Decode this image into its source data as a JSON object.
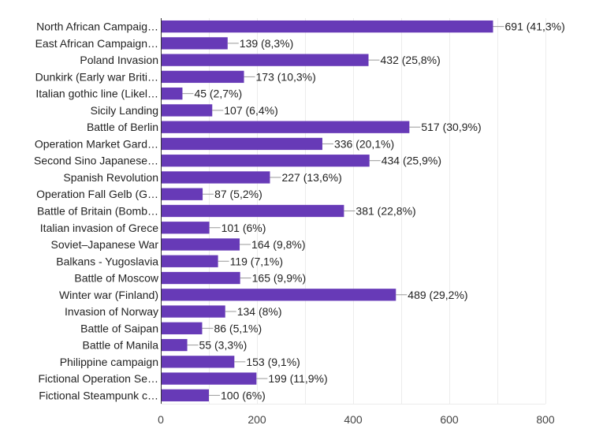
{
  "chart_data": {
    "type": "bar",
    "orientation": "horizontal",
    "title": "",
    "xlabel": "",
    "ylabel": "",
    "xlim": [
      0,
      800
    ],
    "x_ticks": [
      "0",
      "200",
      "400",
      "600",
      "800"
    ],
    "grid": true,
    "legend": "none",
    "bar_color": "#673ab7",
    "categories": [
      "North African Campaig…",
      "East African Campaign…",
      "Poland Invasion",
      "Dunkirk (Early war Briti…",
      "Italian gothic line (Likel…",
      "Sicily Landing",
      "Battle of Berlin",
      "Operation Market Gard…",
      "Second Sino Japanese…",
      "Spanish Revolution",
      "Operation Fall Gelb (G…",
      "Battle of Britain (Bomb…",
      "Italian invasion of Grece",
      "Soviet–Japanese War",
      "Balkans - Yugoslavia",
      "Battle of Moscow",
      "Winter war (Finland)",
      "Invasion of Norway",
      "Battle of Saipan",
      "Battle of Manila",
      "Philippine campaign",
      "Fictional Operation Se…",
      "Fictional Steampunk c…"
    ],
    "values": [
      691,
      139,
      432,
      173,
      45,
      107,
      517,
      336,
      434,
      227,
      87,
      381,
      101,
      164,
      119,
      165,
      489,
      134,
      86,
      55,
      153,
      199,
      100
    ],
    "data_labels": [
      "691 (41,3%)",
      "139 (8,3%)",
      "432 (25,8%)",
      "173 (10,3%)",
      "45 (2,7%)",
      "107 (6,4%)",
      "517 (30,9%)",
      "336 (20,1%)",
      "434 (25,9%)",
      "227 (13,6%)",
      "87 (5,2%)",
      "381 (22,8%)",
      "101 (6%)",
      "164 (9,8%)",
      "119 (7,1%)",
      "165 (9,9%)",
      "489 (29,2%)",
      "134 (8%)",
      "86 (5,1%)",
      "55 (3,3%)",
      "153 (9,1%)",
      "199 (11,9%)",
      "100 (6%)"
    ]
  }
}
